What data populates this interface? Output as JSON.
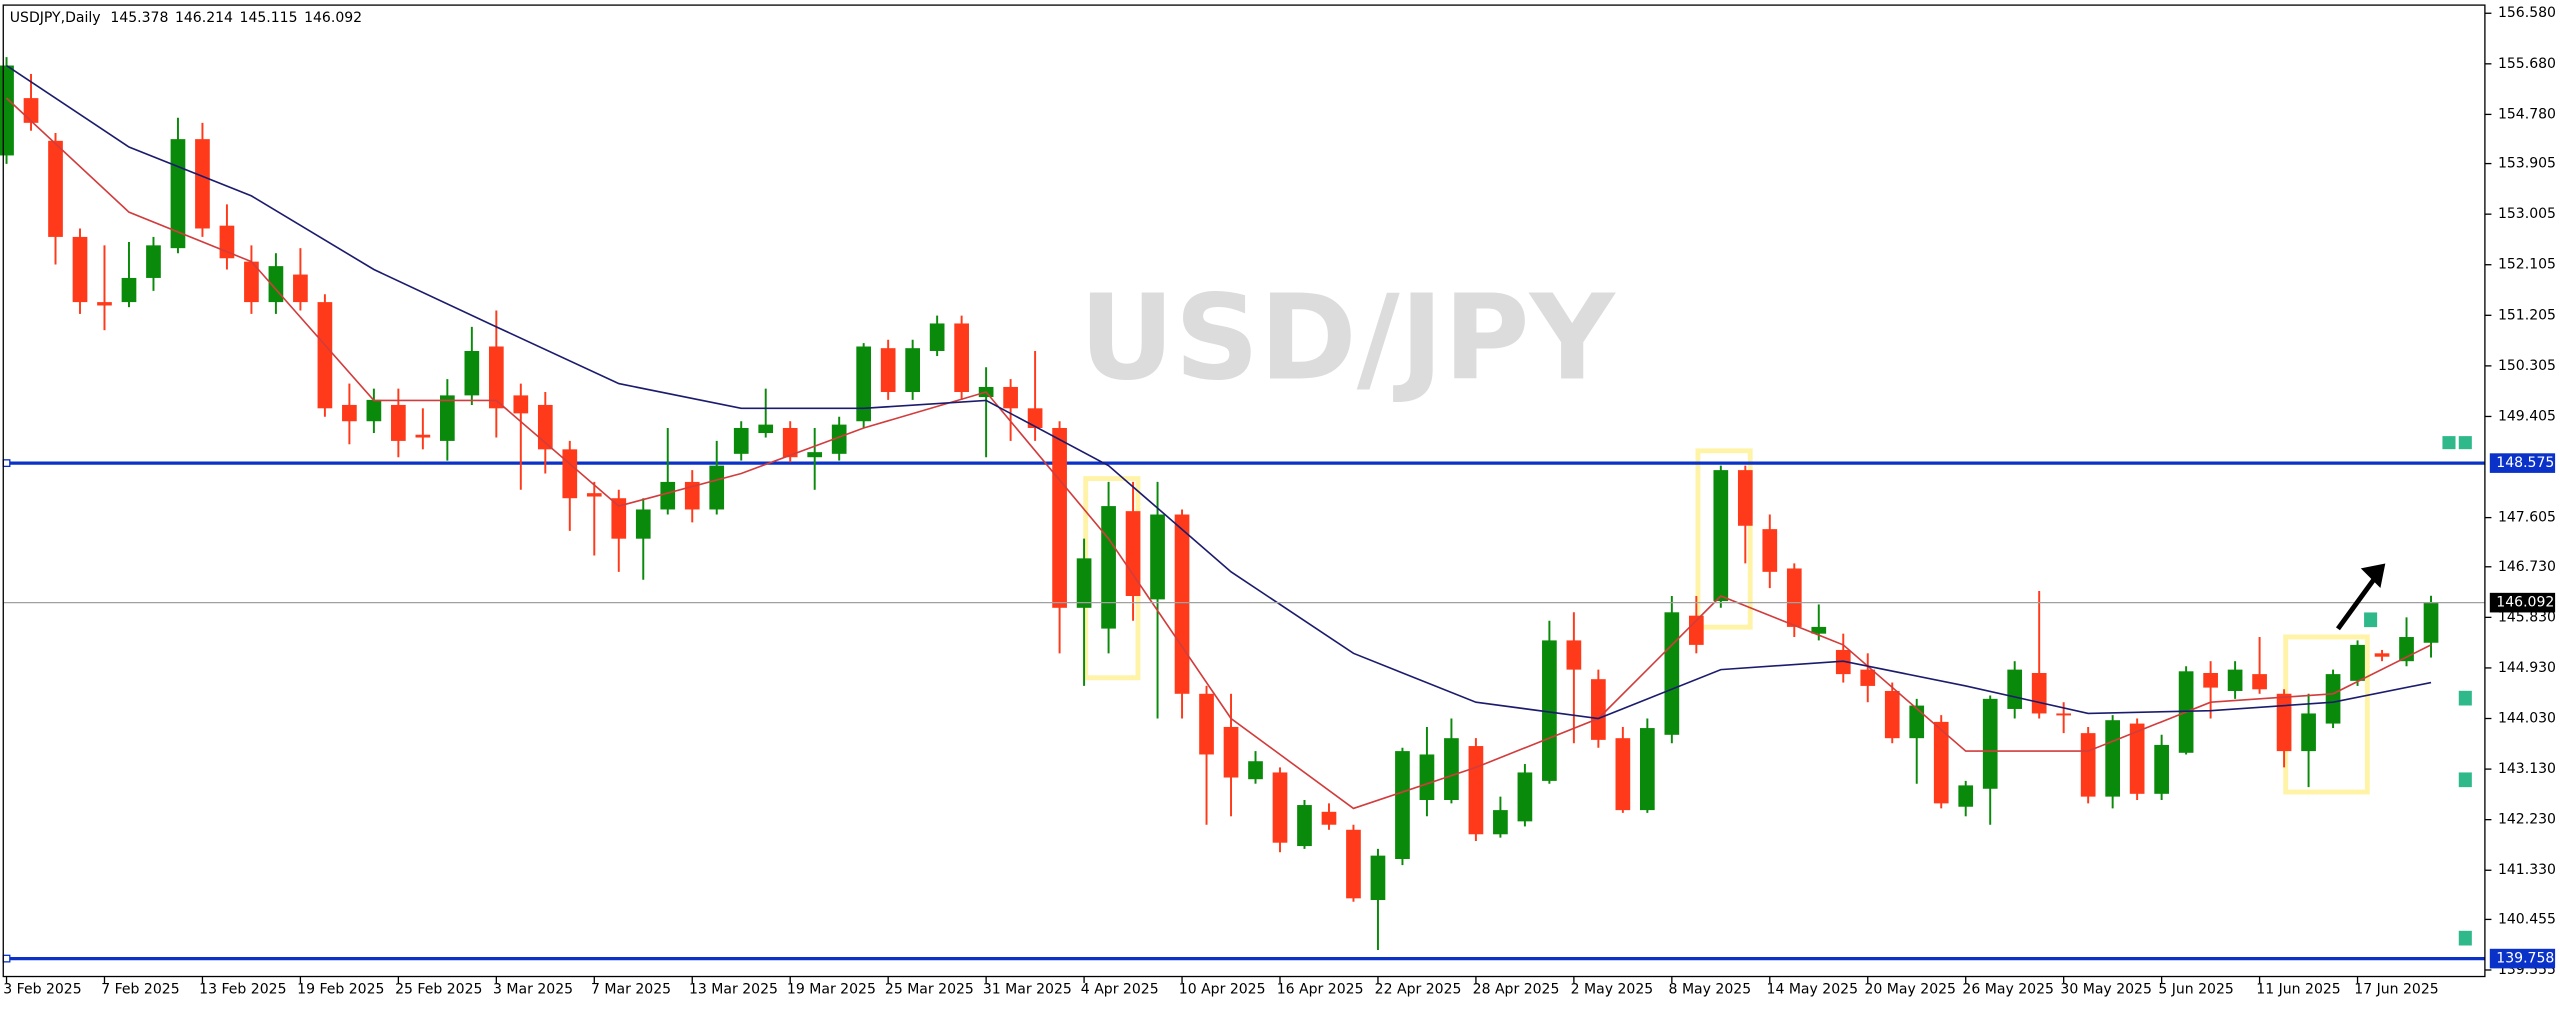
{
  "chart_data": {
    "type": "candlestick",
    "title": "USDJPY,Daily",
    "watermark": "USD/JPY",
    "categories": [
      "3 Feb 2025",
      null,
      null,
      null,
      "7 Feb 2025",
      null,
      null,
      null,
      "13 Feb 2025",
      null,
      null,
      null,
      "19 Feb 2025",
      null,
      null,
      null,
      "25 Feb 2025",
      null,
      null,
      null,
      "3 Mar 2025",
      null,
      null,
      null,
      "7 Mar 2025",
      null,
      null,
      null,
      "13 Mar 2025",
      null,
      null,
      null,
      "19 Mar 2025",
      null,
      null,
      null,
      "25 Mar 2025",
      null,
      null,
      null,
      "31 Mar 2025",
      null,
      null,
      null,
      "4 Apr 2025",
      null,
      null,
      null,
      "10 Apr 2025",
      null,
      null,
      null,
      "16 Apr 2025",
      null,
      null,
      null,
      "22 Apr 2025",
      null,
      null,
      null,
      "28 Apr 2025",
      null,
      null,
      null,
      "2 May 2025",
      null,
      null,
      null,
      "8 May 2025",
      null,
      null,
      null,
      "14 May 2025",
      null,
      null,
      null,
      "20 May 2025",
      null,
      null,
      null,
      "26 May 2025",
      null,
      null,
      null,
      "30 May 2025",
      null,
      null,
      null,
      "5 Jun 2025",
      null,
      null,
      null,
      "11 Jun 2025",
      null,
      null,
      null,
      "17 Jun 2025",
      null,
      null,
      null
    ],
    "open": [
      154.05,
      155.07,
      154.31,
      152.6,
      151.44,
      151.44,
      151.87,
      152.4,
      154.34,
      152.8,
      152.16,
      151.44,
      151.93,
      151.44,
      149.61,
      149.32,
      149.61,
      149.08,
      148.97,
      149.78,
      150.65,
      149.78,
      149.61,
      148.82,
      148.04,
      147.95,
      147.23,
      147.75,
      148.24,
      147.75,
      148.74,
      149.11,
      149.2,
      148.68,
      148.74,
      149.32,
      150.62,
      149.84,
      150.57,
      151.06,
      149.75,
      149.93,
      149.55,
      149.2,
      146.0,
      145.63,
      147.72,
      146.15,
      147.66,
      144.47,
      143.88,
      142.95,
      143.07,
      141.76,
      142.37,
      142.05,
      140.8,
      141.53,
      142.58,
      142.58,
      143.54,
      141.97,
      142.2,
      142.92,
      145.42,
      144.73,
      143.68,
      142.4,
      143.74,
      145.86,
      146.12,
      148.45,
      147.4,
      146.7,
      145.54,
      145.25,
      144.9,
      144.52,
      143.68,
      143.97,
      142.46,
      142.78,
      144.2,
      144.84,
      144.12,
      143.77,
      142.64,
      143.94,
      142.69,
      143.42,
      144.84,
      144.52,
      144.82,
      144.47,
      143.45,
      143.94,
      144.7,
      145.19,
      145.05,
      145.378
    ],
    "high": [
      155.8,
      155.5,
      154.45,
      152.75,
      152.45,
      152.51,
      152.6,
      154.72,
      154.63,
      153.18,
      152.45,
      152.31,
      152.4,
      151.58,
      149.99,
      149.9,
      149.9,
      149.55,
      150.07,
      151.0,
      151.29,
      149.99,
      149.84,
      148.97,
      148.24,
      148.1,
      147.95,
      149.2,
      148.45,
      148.97,
      149.32,
      149.9,
      149.32,
      149.2,
      149.4,
      150.71,
      150.77,
      150.77,
      151.2,
      151.2,
      150.28,
      150.07,
      150.57,
      149.32,
      147.23,
      148.24,
      148.24,
      148.24,
      147.75,
      144.61,
      144.47,
      143.45,
      143.16,
      142.58,
      142.52,
      142.14,
      141.71,
      143.51,
      143.88,
      144.03,
      143.68,
      142.64,
      143.22,
      145.77,
      145.92,
      144.9,
      143.88,
      144.03,
      146.21,
      146.21,
      148.53,
      148.53,
      147.66,
      146.79,
      146.06,
      145.54,
      145.19,
      144.67,
      144.38,
      144.09,
      142.92,
      144.44,
      145.05,
      146.3,
      144.32,
      143.88,
      144.09,
      144.03,
      143.74,
      144.96,
      145.05,
      145.05,
      145.48,
      144.55,
      144.47,
      144.9,
      145.42,
      145.25,
      145.83,
      146.214
    ],
    "low": [
      153.9,
      154.49,
      152.11,
      151.23,
      150.94,
      151.35,
      151.64,
      152.31,
      152.6,
      152.02,
      151.23,
      151.23,
      151.29,
      149.4,
      148.91,
      149.11,
      148.68,
      148.82,
      148.62,
      149.61,
      149.03,
      148.1,
      148.39,
      147.37,
      146.93,
      146.64,
      146.5,
      147.66,
      147.52,
      147.66,
      148.62,
      149.03,
      148.59,
      148.1,
      148.62,
      149.2,
      149.7,
      149.7,
      150.48,
      149.7,
      148.68,
      148.97,
      148.97,
      145.19,
      144.61,
      145.19,
      145.77,
      144.03,
      144.03,
      142.14,
      142.29,
      142.87,
      141.65,
      141.71,
      142.05,
      140.77,
      139.91,
      141.42,
      142.29,
      142.52,
      141.85,
      141.91,
      142.11,
      142.87,
      143.59,
      143.51,
      142.35,
      142.35,
      143.59,
      145.19,
      146.0,
      146.79,
      146.35,
      145.48,
      145.42,
      144.67,
      144.32,
      143.59,
      142.87,
      142.43,
      142.29,
      142.14,
      144.03,
      144.03,
      143.77,
      142.52,
      142.43,
      142.58,
      142.58,
      143.39,
      144.03,
      144.38,
      144.47,
      143.16,
      142.81,
      143.86,
      144.61,
      145.05,
      144.96,
      145.115
    ],
    "close": [
      155.65,
      154.63,
      152.6,
      151.44,
      151.38,
      151.87,
      152.45,
      154.34,
      152.75,
      152.22,
      151.44,
      152.08,
      151.44,
      149.55,
      149.32,
      149.7,
      148.97,
      149.03,
      149.78,
      150.57,
      149.55,
      149.46,
      148.82,
      147.95,
      147.98,
      147.23,
      147.75,
      148.24,
      147.75,
      148.53,
      149.2,
      149.26,
      148.68,
      148.77,
      149.26,
      150.65,
      149.84,
      150.62,
      151.06,
      149.84,
      149.93,
      149.55,
      149.2,
      146.0,
      146.88,
      147.81,
      146.21,
      147.66,
      144.47,
      143.39,
      142.98,
      143.27,
      141.82,
      142.49,
      142.14,
      140.83,
      141.59,
      143.45,
      143.39,
      143.68,
      141.97,
      142.4,
      143.07,
      145.42,
      144.9,
      143.65,
      142.4,
      143.86,
      145.92,
      145.34,
      148.45,
      147.46,
      146.64,
      145.66,
      145.66,
      144.82,
      144.61,
      143.68,
      144.26,
      142.52,
      142.84,
      144.38,
      144.9,
      144.12,
      144.09,
      142.64,
      144.0,
      142.69,
      143.56,
      144.87,
      144.58,
      144.9,
      144.55,
      143.45,
      144.12,
      144.82,
      145.34,
      145.13,
      145.48,
      146.092
    ],
    "up_color": "#0a8a0a",
    "down_color": "#ff3a1a",
    "ma_lines": [
      {
        "color": "#d23c3c",
        "x": [
          0,
          5,
          10,
          15,
          20,
          25,
          30,
          35,
          40,
          45,
          50,
          55,
          60,
          65,
          70,
          75,
          80,
          85,
          90,
          95,
          99
        ],
        "values": [
          155.07,
          153.04,
          152.16,
          149.69,
          149.69,
          147.81,
          148.39,
          149.2,
          149.84,
          147.23,
          144.03,
          142.43,
          143.16,
          144.03,
          146.21,
          145.34,
          143.45,
          143.45,
          144.32,
          144.47,
          145.34
        ]
      },
      {
        "color": "#1c1c6e",
        "x": [
          0,
          5,
          10,
          15,
          20,
          25,
          30,
          35,
          40,
          45,
          50,
          55,
          60,
          65,
          70,
          75,
          80,
          85,
          90,
          95,
          99
        ],
        "values": [
          155.65,
          154.2,
          153.33,
          152.02,
          151.0,
          149.99,
          149.55,
          149.55,
          149.69,
          148.53,
          146.64,
          145.19,
          144.32,
          144.03,
          144.9,
          145.05,
          144.61,
          144.12,
          144.17,
          144.32,
          144.67
        ]
      }
    ],
    "hlines": [
      {
        "value": 148.575,
        "color": "#0a32c8"
      },
      {
        "value": 139.758,
        "color": "#0a32c8"
      }
    ],
    "ylim": [
      139.555,
      156.58
    ],
    "yticks": [
      {
        "value": 156.58,
        "label": "156.580"
      },
      {
        "value": 155.68,
        "label": "155.680"
      },
      {
        "value": 154.78,
        "label": "154.780"
      },
      153.905,
      153.005,
      152.105,
      151.205,
      150.305,
      149.405,
      147.605,
      {
        "value": 146.73,
        "label": "146.730"
      },
      {
        "value": 145.83,
        "label": "145.830"
      },
      {
        "value": 144.93,
        "label": "144.930"
      },
      {
        "value": 144.03,
        "label": "144.030"
      },
      {
        "value": 143.13,
        "label": "143.130"
      },
      {
        "value": 142.23,
        "label": "142.230"
      },
      {
        "value": 141.33,
        "label": "141.330"
      },
      140.455,
      139.555
    ],
    "grid": false
  }
}
